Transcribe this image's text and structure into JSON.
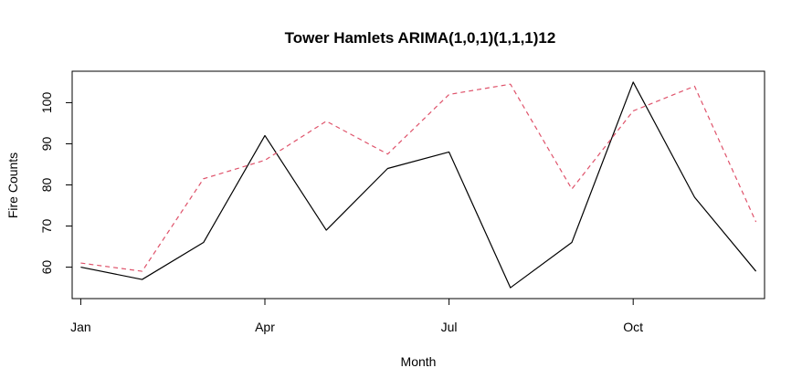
{
  "chart_data": {
    "type": "line",
    "title": "Tower Hamlets ARIMA(1,0,1)(1,1,1)12",
    "xlabel": "Month",
    "ylabel": "Fire Counts",
    "x": [
      1,
      2,
      3,
      4,
      5,
      6,
      7,
      8,
      9,
      10,
      11,
      12
    ],
    "x_ticks": [
      1,
      4,
      7,
      10
    ],
    "x_tick_labels": [
      "Jan",
      "Apr",
      "Jul",
      "Oct"
    ],
    "y_ticks": [
      60,
      70,
      80,
      90,
      100
    ],
    "xlim": [
      0.86,
      12.14
    ],
    "ylim": [
      52.35,
      107.65
    ],
    "grid": false,
    "legend": false,
    "series": [
      {
        "values": [
          60,
          57,
          66,
          92,
          69,
          84,
          88,
          55,
          66,
          105,
          77,
          59
        ],
        "color": "#000000",
        "style": "solid"
      },
      {
        "values": [
          61,
          59,
          81.5,
          86,
          95.5,
          87.5,
          102,
          104.5,
          79,
          98,
          104,
          71
        ],
        "color": "#DF536B",
        "style": "dashed"
      }
    ]
  }
}
